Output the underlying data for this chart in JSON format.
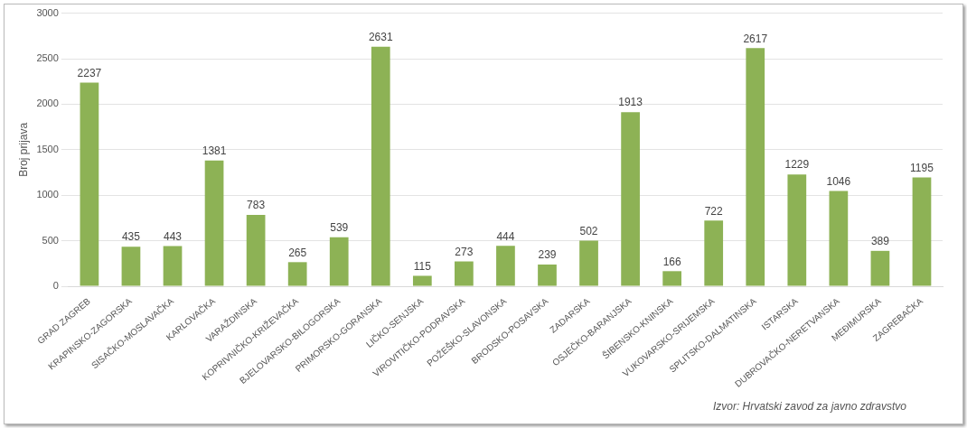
{
  "chart_data": {
    "type": "bar",
    "ylabel": "Broj prijava",
    "categories": [
      "GRAD ZAGREB",
      "KRAPINSKO-ZAGORSKA",
      "SISAČKO-MOSLAVAČKA",
      "KARLOVAČKA",
      "VARAŽDINSKA",
      "KOPRIVNIČKO-KRIŽEVAČKA",
      "BJELOVARSKO-BILOGORSKA",
      "PRIMORSKO-GORANSKA",
      "LIČKO-SENJSKA",
      "VIROVITIČKO-PODRAVSKA",
      "POŽEŠKO-SLAVONSKA",
      "BRODSKO-POSAVSKA",
      "ZADARSKA",
      "OSJEČKO-BARANJSKA",
      "ŠIBENSKO-KNINSKA",
      "VUKOVARSKO-SRIJEMSKA",
      "SPLITSKO-DALMATINSKA",
      "ISTARSKA",
      "DUBROVAČKO-NERETVANSKA",
      "MEĐIMURSKA",
      "ZAGREBAČKA"
    ],
    "values": [
      2237,
      435,
      443,
      1381,
      783,
      265,
      539,
      2631,
      115,
      273,
      444,
      239,
      502,
      1913,
      166,
      722,
      2617,
      1229,
      1046,
      389,
      1195
    ],
    "color": "#8db255",
    "ylim": [
      0,
      3000
    ],
    "yticks": [
      0,
      500,
      1000,
      1500,
      2000,
      2500,
      3000
    ],
    "grid": "y",
    "data_labels": true,
    "annotations": [
      "Izvor: Hrvatski zavod za javno zdravstvo"
    ]
  }
}
